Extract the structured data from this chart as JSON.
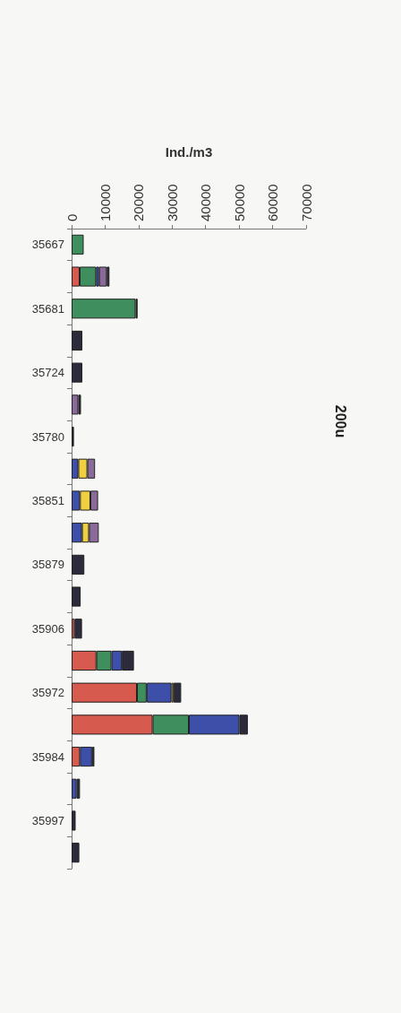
{
  "chart_data": {
    "type": "bar",
    "title": "200u",
    "xlabel": "Ind./m3",
    "orientation": "horizontal",
    "stacked": true,
    "categories": [
      "35667",
      null,
      "35681",
      null,
      "35724",
      null,
      "35780",
      null,
      "35851",
      null,
      "35879",
      null,
      "35906",
      null,
      "35972",
      null,
      "35984",
      null,
      "35997",
      null
    ],
    "series": [
      {
        "color": "#d65a4e",
        "values": [
          null,
          2400,
          null,
          null,
          null,
          null,
          null,
          null,
          null,
          null,
          null,
          null,
          900,
          7400,
          19500,
          24200,
          2500,
          null,
          null,
          null
        ]
      },
      {
        "color": "#3f8f5e",
        "values": [
          3600,
          4900,
          19100,
          null,
          null,
          null,
          null,
          null,
          null,
          null,
          null,
          null,
          null,
          4500,
          2900,
          10800,
          null,
          null,
          null,
          null
        ]
      },
      {
        "color": "#3d4fa8",
        "values": [
          null,
          900,
          null,
          null,
          null,
          null,
          null,
          2000,
          2500,
          3100,
          null,
          null,
          null,
          3100,
          7400,
          15100,
          3600,
          1500,
          null,
          null
        ]
      },
      {
        "color": "#f0d040",
        "values": [
          null,
          null,
          null,
          null,
          null,
          null,
          null,
          2700,
          3100,
          2100,
          null,
          null,
          null,
          null,
          600,
          null,
          null,
          null,
          null,
          null
        ]
      },
      {
        "color": "#8a6a9a",
        "values": [
          null,
          2300,
          null,
          null,
          null,
          2000,
          null,
          2300,
          2300,
          2900,
          null,
          null,
          null,
          null,
          null,
          null,
          null,
          null,
          null,
          null
        ]
      },
      {
        "color": "#2b2b3b",
        "values": [
          null,
          800,
          600,
          3200,
          3200,
          800,
          700,
          null,
          null,
          null,
          3800,
          2700,
          2200,
          3600,
          2300,
          2500,
          700,
          1000,
          1200,
          2300
        ]
      }
    ],
    "xlim": [
      0,
      70000
    ],
    "xticks": [
      0,
      10000,
      20000,
      30000,
      40000,
      50000,
      60000,
      70000
    ],
    "grid": false
  }
}
